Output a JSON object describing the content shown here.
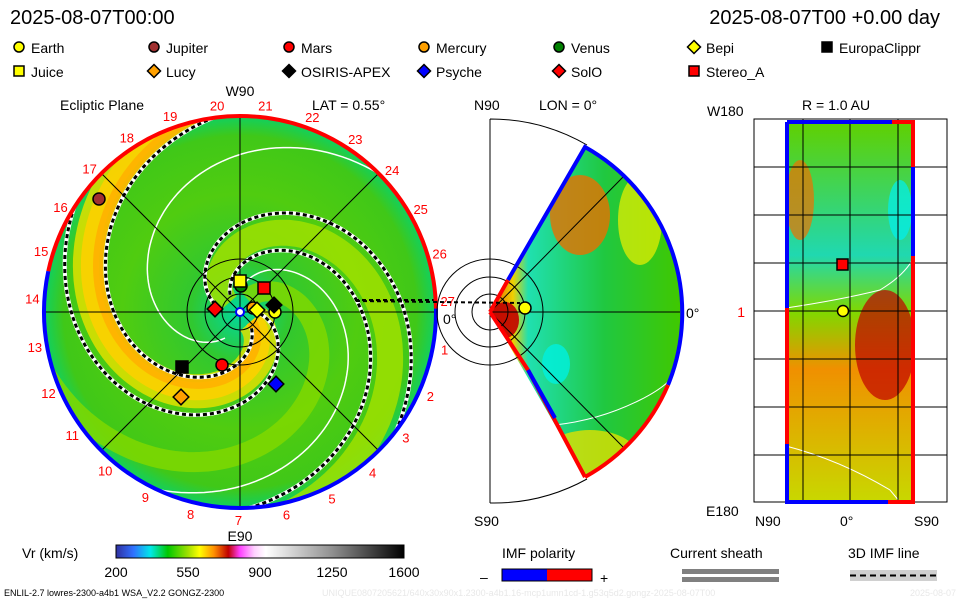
{
  "header": {
    "time_left": "2025-08-07T00:00",
    "time_right": "2025-08-07T00 +0.00 day"
  },
  "legend": [
    {
      "name": "Earth",
      "shape": "circle",
      "color": "#ffff00"
    },
    {
      "name": "Jupiter",
      "shape": "circle",
      "color": "#a03030"
    },
    {
      "name": "Mars",
      "shape": "circle",
      "color": "#ff0000"
    },
    {
      "name": "Mercury",
      "shape": "circle",
      "color": "#ffa000"
    },
    {
      "name": "Venus",
      "shape": "circle",
      "color": "#008000"
    },
    {
      "name": "Bepi",
      "shape": "diamond",
      "color": "#ffff00"
    },
    {
      "name": "EuropaClippr",
      "shape": "square",
      "color": "#000000"
    },
    {
      "name": "Juice",
      "shape": "square",
      "color": "#ffff00"
    },
    {
      "name": "Lucy",
      "shape": "diamond",
      "color": "#ffa000"
    },
    {
      "name": "OSIRIS-APEX",
      "shape": "diamond",
      "color": "#000000"
    },
    {
      "name": "Psyche",
      "shape": "diamond",
      "color": "#0000ff"
    },
    {
      "name": "SolO",
      "shape": "diamond",
      "color": "#ff0000"
    },
    {
      "name": "Stereo_A",
      "shape": "square",
      "color": "#ff0000"
    }
  ],
  "ecliptic": {
    "title": "Ecliptic Plane",
    "top": "W90",
    "bottom": "E90",
    "right": "0°",
    "lat": "LAT = 0.55°",
    "rim_labels": [
      "1",
      "2",
      "3",
      "4",
      "5",
      "6",
      "7",
      "8",
      "9",
      "10",
      "11",
      "12",
      "13",
      "14",
      "15",
      "16",
      "17",
      "18",
      "19",
      "20",
      "21",
      "22",
      "23",
      "24",
      "25",
      "26",
      "27"
    ]
  },
  "meridional": {
    "top": "N90",
    "bottom": "S90",
    "right": "0°",
    "lon": "LON = 0°"
  },
  "radial_map": {
    "title": "R = 1.0 AU",
    "top": "W180",
    "bottom": "E180",
    "x_left": "N90",
    "x_mid": "0°",
    "x_right": "S90",
    "y_mid": "1"
  },
  "colorbar": {
    "label": "Vr (km/s)",
    "ticks": [
      "200",
      "550",
      "900",
      "1250",
      "1600"
    ]
  },
  "imf": {
    "label": "IMF polarity",
    "minus": "–",
    "plus": "+",
    "neg_color": "#0000ff",
    "pos_color": "#ff0000"
  },
  "sheath": {
    "label": "Current sheath"
  },
  "imf_line": {
    "label": "3D IMF line"
  },
  "footer": {
    "model": "ENLIL-2.7 lowres-2300-a4b1 WSA_V2.2 GONGZ-2300",
    "run_id": "UNIQUE0807205621/640x30x90x1.2300-a4b1.16-mcp1umn1cd-1.g53q5d2.gongz-2025-08-07T00",
    "date": "2025-08-07"
  },
  "chart_data": {
    "type": "heatmap",
    "quantity": "Vr (km/s)",
    "color_range": [
      200,
      1600
    ],
    "colorbar_ticks": [
      200,
      550,
      900,
      1250,
      1600
    ],
    "panels": [
      {
        "title": "Ecliptic Plane",
        "annotation": "LAT = 0.55°",
        "axis_labels": [
          "W90",
          "E90",
          "0°"
        ]
      },
      {
        "title": "LON = 0°",
        "axis_labels": [
          "N90",
          "S90",
          "0°"
        ]
      },
      {
        "title": "R = 1.0 AU",
        "axis_labels": [
          "W180",
          "E180",
          "N90",
          "0°",
          "S90",
          "1"
        ]
      }
    ]
  }
}
